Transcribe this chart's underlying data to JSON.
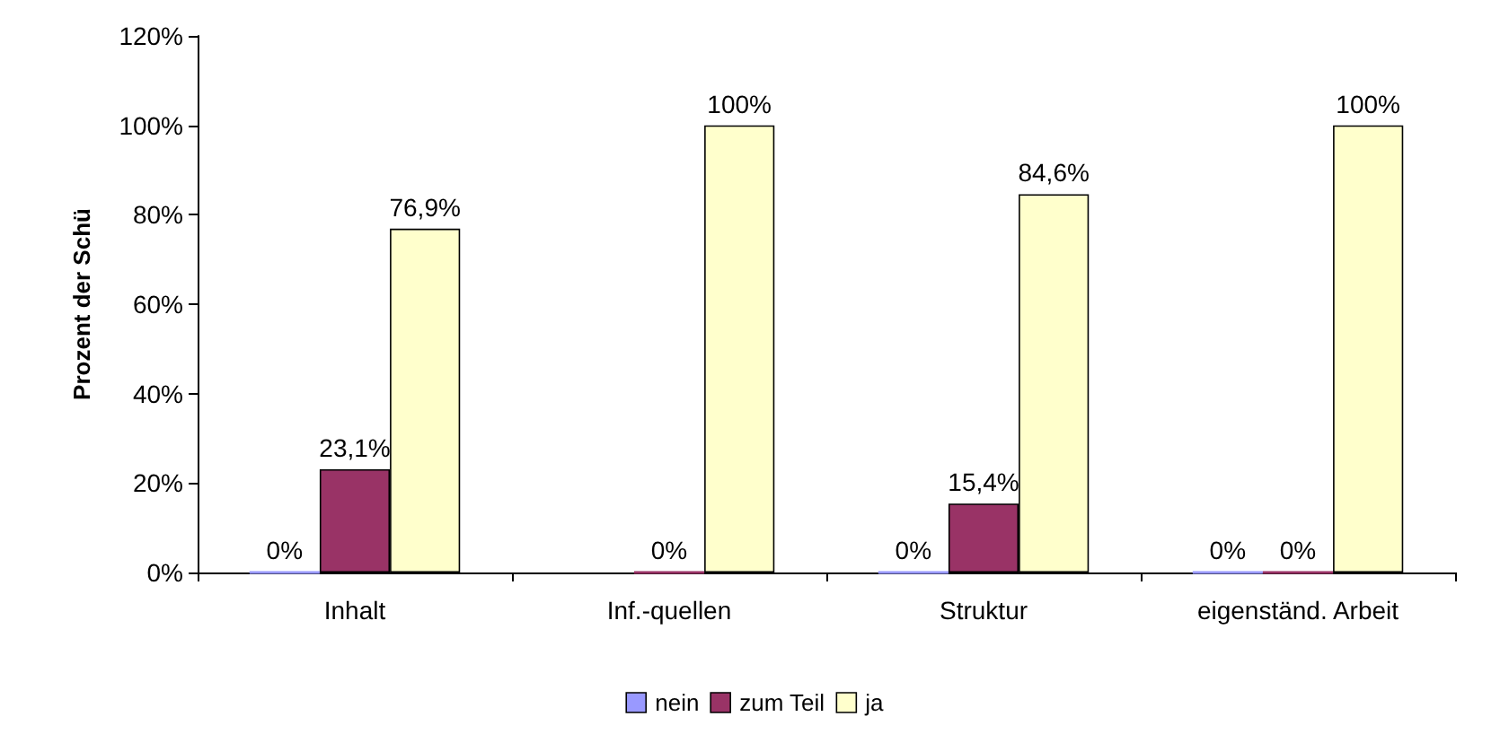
{
  "chart_data": {
    "type": "bar",
    "ylabel": "Prozent der Schü",
    "categories": [
      "Inhalt",
      "Inf.-quellen",
      "Struktur",
      "eigenständ. Arbeit"
    ],
    "series": [
      {
        "name": "nein",
        "color": "#9999ff",
        "values": [
          0,
          null,
          0,
          0
        ],
        "value_labels": [
          "0%",
          null,
          "0%",
          "0%"
        ]
      },
      {
        "name": "zum Teil",
        "color": "#993366",
        "values": [
          23.1,
          0,
          15.4,
          0
        ],
        "value_labels": [
          "23,1%",
          "0%",
          "15,4%",
          "0%"
        ]
      },
      {
        "name": "ja",
        "color": "#ffffcc",
        "values": [
          76.9,
          100,
          84.6,
          100
        ],
        "value_labels": [
          "76,9%",
          "100%",
          "84,6%",
          "100%"
        ]
      }
    ],
    "ylim": [
      0,
      120
    ],
    "yticks": [
      {
        "value": 0,
        "label": "0%"
      },
      {
        "value": 20,
        "label": "20%"
      },
      {
        "value": 40,
        "label": "40%"
      },
      {
        "value": 60,
        "label": "60%"
      },
      {
        "value": 80,
        "label": "80%"
      },
      {
        "value": 100,
        "label": "100%"
      },
      {
        "value": 120,
        "label": "120%"
      }
    ],
    "grid": false,
    "legend": "bottom"
  }
}
